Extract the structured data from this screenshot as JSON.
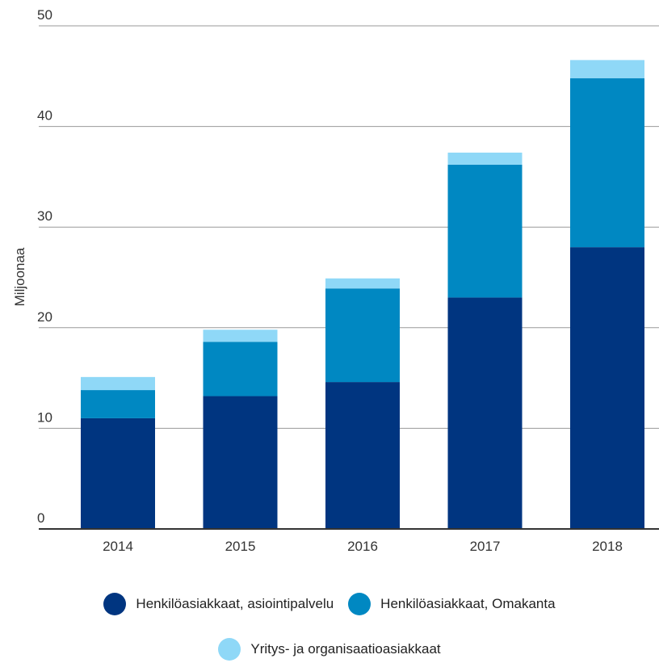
{
  "chart_data": {
    "type": "bar",
    "stacked": true,
    "categories": [
      "2014",
      "2015",
      "2016",
      "2017",
      "2018"
    ],
    "series": [
      {
        "name": "Henkilöasiakkaat, asiointipalvelu",
        "color": "#003580",
        "values": [
          11.0,
          13.2,
          14.6,
          23.0,
          28.0
        ]
      },
      {
        "name": "Henkilöasiakkaat, Omakanta",
        "color": "#0088c2",
        "values": [
          2.8,
          5.4,
          9.3,
          13.2,
          16.8
        ]
      },
      {
        "name": "Yritys- ja organisaatioasiakkaat",
        "color": "#8fd8f7",
        "values": [
          1.3,
          1.2,
          1.0,
          1.2,
          1.8
        ]
      }
    ],
    "ylabel": "Miljoonaa",
    "ylim": [
      0,
      50
    ],
    "yticks": [
      "0",
      "10",
      "20",
      "30",
      "40",
      "50"
    ],
    "grid": true,
    "legend_placement": "bottom"
  }
}
